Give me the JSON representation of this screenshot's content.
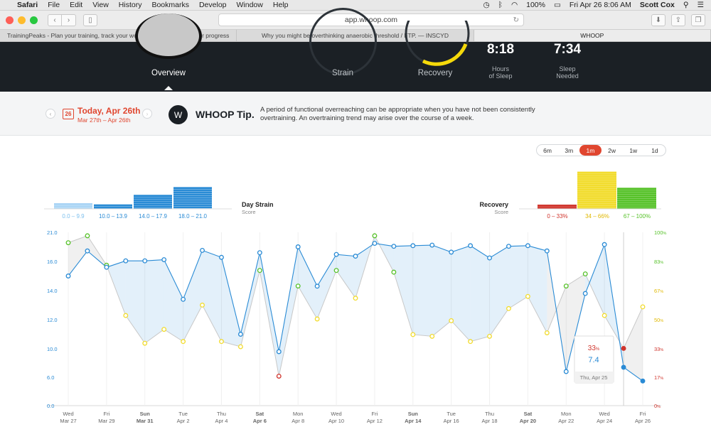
{
  "menubar": {
    "app": "Safari",
    "items": [
      "File",
      "Edit",
      "View",
      "History",
      "Bookmarks",
      "Develop",
      "Window",
      "Help"
    ],
    "battery": "100%",
    "clock": "Fri Apr 26  8:06 AM",
    "user": "Scott Cox"
  },
  "browser": {
    "url": "app.whoop.com",
    "tabs": [
      "TrainingPeaks - Plan your training, track your workouts and measure your progress",
      "Why you might be overthinking anaerobic threshold / FTP. — INSCYD",
      "WHOOP"
    ]
  },
  "hero": {
    "nav": [
      "Overview",
      "Strain",
      "Recovery"
    ],
    "sleep_hours": "8:18",
    "sleep_hours_label_1": "Hours",
    "sleep_hours_label_2": "of Sleep",
    "sleep_needed": "7:34",
    "sleep_needed_label_1": "Sleep",
    "sleep_needed_label_2": "Needed"
  },
  "tipbar": {
    "cal_day": "26",
    "today": "Today, Apr 26th",
    "range": "Mar 27th – Apr 26th",
    "tip_title": "WHOOP Tip.",
    "tip_text": "A period of functional overreaching can be appropriate when you have not been consistently overtraining. An overtraining trend may arise over the course of a week."
  },
  "range_buttons": [
    "6m",
    "3m",
    "1m",
    "2w",
    "1w",
    "1d"
  ],
  "active_range": "1m",
  "colors": {
    "strain_blue": "#2a8bd5",
    "strain_light": "#7ec0ee",
    "recovery_red": "#d0342c",
    "recovery_yellow": "#f2dc2e",
    "recovery_green": "#57c22a",
    "accent": "#e0462f"
  },
  "chart_data": {
    "type": "line",
    "strain_legend": {
      "title": "Day Strain",
      "subtitle": "Score",
      "bins": [
        "0.0 – 9.9",
        "10.0 – 13.9",
        "14.0 – 17.9",
        "18.0 – 21.0"
      ],
      "bin_heights": [
        0.19,
        0.15,
        0.47,
        0.73
      ]
    },
    "recovery_legend": {
      "title": "Recovery",
      "subtitle": "Score",
      "bins": [
        "0 – 33%",
        "34 – 66%",
        "67 – 100%"
      ],
      "bin_heights": [
        0.11,
        0.97,
        0.55
      ]
    },
    "x_labels": [
      {
        "day": "Wed",
        "date": "Mar 27"
      },
      {
        "day": "Fri",
        "date": "Mar 29"
      },
      {
        "day": "Sun",
        "date": "Mar 31",
        "bold": true
      },
      {
        "day": "Tue",
        "date": "Apr 2"
      },
      {
        "day": "Thu",
        "date": "Apr 4"
      },
      {
        "day": "Sat",
        "date": "Apr 6",
        "bold": true
      },
      {
        "day": "Mon",
        "date": "Apr 8"
      },
      {
        "day": "Wed",
        "date": "Apr 10"
      },
      {
        "day": "Fri",
        "date": "Apr 12"
      },
      {
        "day": "Sun",
        "date": "Apr 14",
        "bold": true
      },
      {
        "day": "Tue",
        "date": "Apr 16"
      },
      {
        "day": "Thu",
        "date": "Apr 18"
      },
      {
        "day": "Sat",
        "date": "Apr 20",
        "bold": true
      },
      {
        "day": "Mon",
        "date": "Apr 22"
      },
      {
        "day": "Wed",
        "date": "Apr 24"
      },
      {
        "day": "Fri",
        "date": "Apr 26"
      }
    ],
    "y_left_ticks": [
      "0.0",
      "6.0",
      "10.0",
      "12.0",
      "14.0",
      "16.0",
      "21.0"
    ],
    "y_right_ticks": [
      "0%",
      "17%",
      "33%",
      "50%",
      "67%",
      "83%",
      "100%"
    ],
    "strain": [
      15.0,
      17.8,
      15.6,
      16.1,
      16.1,
      16.3,
      13.4,
      17.9,
      16.7,
      11.0,
      17.5,
      9.6,
      18.5,
      14.3,
      17.2,
      16.9,
      19.1,
      18.6,
      18.7,
      18.8,
      17.6,
      18.7,
      16.6,
      18.6,
      18.7,
      17.8,
      6.8,
      13.8,
      18.9,
      7.4,
      5.2
    ],
    "recovery": [
      94,
      98,
      81,
      52,
      36,
      44,
      37,
      58,
      37,
      34,
      78,
      17,
      69,
      50,
      78,
      62,
      98,
      77,
      41,
      40,
      49,
      37,
      40,
      56,
      63,
      42,
      69,
      76,
      52,
      33,
      57
    ],
    "recovery_levels": [
      "green",
      "green",
      "green",
      "yellow",
      "yellow",
      "yellow",
      "yellow",
      "yellow",
      "yellow",
      "yellow",
      "green",
      "red",
      "green",
      "yellow",
      "green",
      "yellow",
      "green",
      "green",
      "yellow",
      "yellow",
      "yellow",
      "yellow",
      "yellow",
      "yellow",
      "yellow",
      "yellow",
      "green",
      "green",
      "yellow",
      "red",
      "yellow"
    ],
    "tooltip": {
      "recovery": "33",
      "recovery_unit": "%",
      "strain": "7.4",
      "date": "Thu, Apr 25"
    }
  }
}
